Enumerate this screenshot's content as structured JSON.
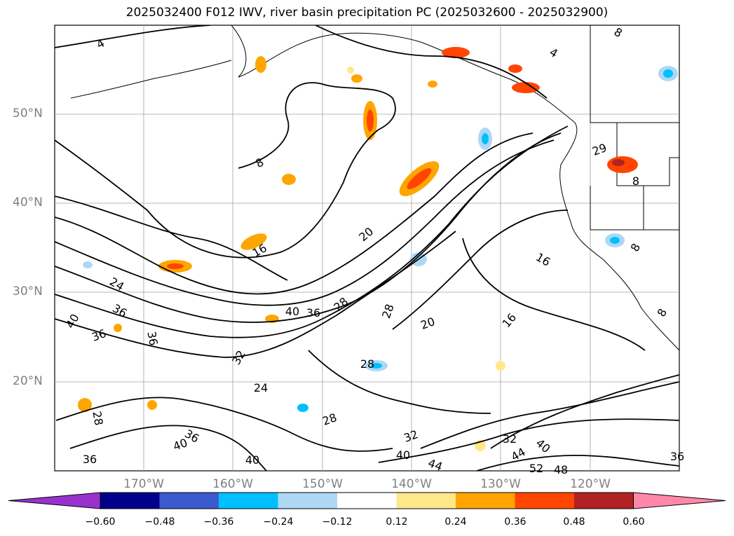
{
  "title": "2025032400 F012 IWV, river basin precipitation PC (2025032600 - 2025032900)",
  "lat_labels": [
    "50°N",
    "40°N",
    "30°N",
    "20°N"
  ],
  "lon_labels": [
    "170°W",
    "160°W",
    "150°W",
    "140°W",
    "130°W",
    "120°W"
  ],
  "contour_labels": [
    "4",
    "8",
    "8",
    "4",
    "20",
    "16",
    "24",
    "36",
    "40",
    "36",
    "40",
    "36",
    "36",
    "28",
    "28",
    "20",
    "16",
    "32",
    "28",
    "24",
    "28",
    "36",
    "40",
    "36",
    "40",
    "28",
    "32",
    "40",
    "44",
    "32",
    "40",
    "44",
    "52",
    "48",
    "36",
    "29",
    "8",
    "8",
    "16",
    "8"
  ],
  "colorbar": {
    "ticks": [
      "−0.60",
      "−0.48",
      "−0.36",
      "−0.24",
      "−0.12",
      "0.12",
      "0.24",
      "0.36",
      "0.48",
      "0.60"
    ],
    "colors": [
      "#9932cc",
      "#00008b",
      "#3a5bcf",
      "#00bfff",
      "#add8f5",
      "#ffffff",
      "#ffe88a",
      "#ffa500",
      "#ff4500",
      "#b22222",
      "#ff88aa"
    ]
  },
  "colors": {
    "contour": "#000000",
    "grid": "#a0a0a0",
    "axis_label": "#808080"
  }
}
